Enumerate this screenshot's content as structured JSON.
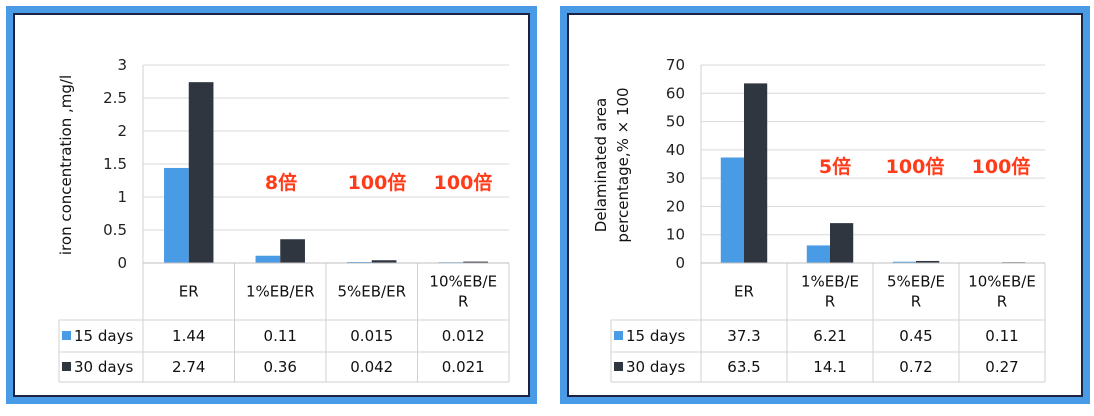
{
  "chart_data": [
    {
      "type": "bar",
      "ylabel": "iron concentration ,mg/l",
      "ylim": [
        0,
        3
      ],
      "yticks": [
        "0",
        "0.5",
        "1",
        "1.5",
        "2",
        "2.5",
        "3"
      ],
      "categories": [
        "ER",
        "1%EB/ER",
        "5%EB/ER",
        "10%EB/ER"
      ],
      "category_labels": [
        [
          "ER"
        ],
        [
          "1%EB/ER"
        ],
        [
          "5%EB/ER"
        ],
        [
          "10%EB/E",
          "R"
        ]
      ],
      "series": [
        {
          "name": "15 days",
          "color": "#4a9be6",
          "values": [
            1.44,
            0.11,
            0.015,
            0.012
          ],
          "labels": [
            "1.44",
            "0.11",
            "0.015",
            "0.012"
          ]
        },
        {
          "name": "30 days",
          "color": "#2f3640",
          "values": [
            2.74,
            0.36,
            0.042,
            0.021
          ],
          "labels": [
            "2.74",
            "0.36",
            "0.042",
            "0.021"
          ]
        }
      ],
      "annotations": [
        "8倍",
        "100倍",
        "100倍"
      ],
      "legend": "table-left",
      "grid": true
    },
    {
      "type": "bar",
      "ylabel": [
        "Delaminated area",
        "percentage,% × 100"
      ],
      "ylim": [
        0,
        70
      ],
      "yticks": [
        "0",
        "10",
        "20",
        "30",
        "40",
        "50",
        "60",
        "70"
      ],
      "categories": [
        "ER",
        "1%EB/ER",
        "5%EB/ER",
        "10%EB/ER"
      ],
      "category_labels": [
        [
          "ER"
        ],
        [
          "1%EB/E",
          "R"
        ],
        [
          "5%EB/E",
          "R"
        ],
        [
          "10%EB/E",
          "R"
        ]
      ],
      "series": [
        {
          "name": "15 days",
          "color": "#4a9be6",
          "values": [
            37.3,
            6.21,
            0.45,
            0.11
          ],
          "labels": [
            "37.3",
            "6.21",
            "0.45",
            "0.11"
          ]
        },
        {
          "name": "30 days",
          "color": "#2f3640",
          "values": [
            63.5,
            14.1,
            0.72,
            0.27
          ],
          "labels": [
            "63.5",
            "14.1",
            "0.72",
            "0.27"
          ]
        }
      ],
      "annotations": [
        "5倍",
        "100倍",
        "100倍"
      ],
      "legend": "table-left",
      "grid": true
    }
  ]
}
